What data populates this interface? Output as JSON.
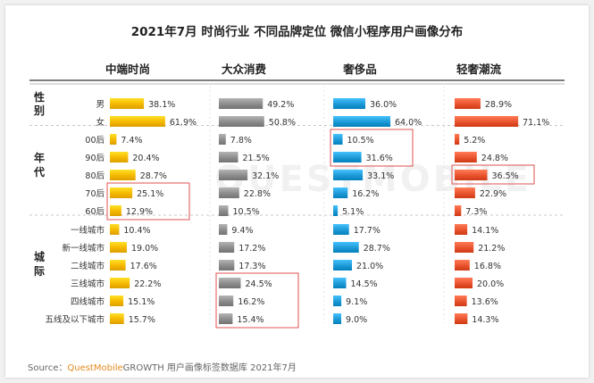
{
  "page": {
    "title": "2021年7月 时尚行业 不同品牌定位 微信小程序用户画像分布",
    "source_prefix": "Source：",
    "source_brand": "QuestMobile",
    "source_rest": "GROWTH 用户画像标签数据库 2021年7月",
    "watermark": "QUESTMOBILE"
  },
  "colors": {
    "中端时尚": "#f5b800",
    "大众消费": "#8c8c8c",
    "奢侈品": "#1d9ad6",
    "轻奢潮流": "#e8532e",
    "highlight": "#e05252"
  },
  "chart_data": {
    "type": "bar",
    "orientation": "horizontal",
    "title": "2021年7月 时尚行业 不同品牌定位 微信小程序用户画像分布",
    "categories": [
      "男",
      "女",
      "00后",
      "90后",
      "80后",
      "70后",
      "60后",
      "一线城市",
      "新一线城市",
      "二线城市",
      "三线城市",
      "四线城市",
      "五线及以下城市"
    ],
    "groups": [
      {
        "name": "性别",
        "categories": [
          "男",
          "女"
        ]
      },
      {
        "name": "年代",
        "categories": [
          "00后",
          "90后",
          "80后",
          "70后",
          "60后"
        ]
      },
      {
        "name": "城际",
        "categories": [
          "一线城市",
          "新一线城市",
          "二线城市",
          "三线城市",
          "四线城市",
          "五线及以下城市"
        ]
      }
    ],
    "series": [
      {
        "name": "中端时尚",
        "values": [
          38.1,
          61.9,
          7.4,
          20.4,
          28.7,
          25.1,
          12.9,
          10.4,
          19.0,
          17.6,
          22.2,
          15.1,
          15.7
        ],
        "labels": [
          "38.1%",
          "61.9%",
          "7.4%",
          "20.4%",
          "28.7%",
          "25.1%",
          "12.9%",
          "10.4%",
          "19.0%",
          "17.6%",
          "22.2%",
          "15.1%",
          "15.7%"
        ]
      },
      {
        "name": "大众消费",
        "values": [
          49.2,
          50.8,
          7.8,
          21.5,
          32.1,
          22.8,
          10.5,
          9.4,
          17.2,
          17.3,
          24.5,
          16.2,
          15.4
        ],
        "labels": [
          "49.2%",
          "50.8%",
          "7.8%",
          "21.5%",
          "32.1%",
          "22.8%",
          "10.5%",
          "9.4%",
          "17.2%",
          "17.3%",
          "24.5%",
          "16.2%",
          "15.4%"
        ]
      },
      {
        "name": "奢侈品",
        "values": [
          36.0,
          64.0,
          10.5,
          31.6,
          33.1,
          16.2,
          5.1,
          17.7,
          28.7,
          21.0,
          14.5,
          9.1,
          9.0
        ],
        "labels": [
          "36.0%",
          "64.0%",
          "10.5%",
          "31.6%",
          "33.1%",
          "16.2%",
          "5.1%",
          "17.7%",
          "28.7%",
          "21.0%",
          "14.5%",
          "9.1%",
          "9.0%"
        ]
      },
      {
        "name": "轻奢潮流",
        "values": [
          28.9,
          71.1,
          5.2,
          24.8,
          36.5,
          22.9,
          7.3,
          14.1,
          21.2,
          16.8,
          20.0,
          13.6,
          14.3
        ],
        "labels": [
          "28.9%",
          "71.1%",
          "5.2%",
          "24.8%",
          "36.5%",
          "22.9%",
          "7.3%",
          "14.1%",
          "21.2%",
          "16.8%",
          "20.0%",
          "13.6%",
          "14.3%"
        ]
      }
    ],
    "highlights": [
      {
        "series": "中端时尚",
        "categories": [
          "70后",
          "60后"
        ]
      },
      {
        "series": "奢侈品",
        "categories": [
          "00后",
          "90后"
        ]
      },
      {
        "series": "轻奢潮流",
        "categories": [
          "80后"
        ]
      },
      {
        "series": "大众消费",
        "categories": [
          "三线城市",
          "四线城市",
          "五线及以下城市"
        ]
      }
    ],
    "xlim": [
      0,
      100
    ],
    "legend": "none",
    "grid": false
  }
}
